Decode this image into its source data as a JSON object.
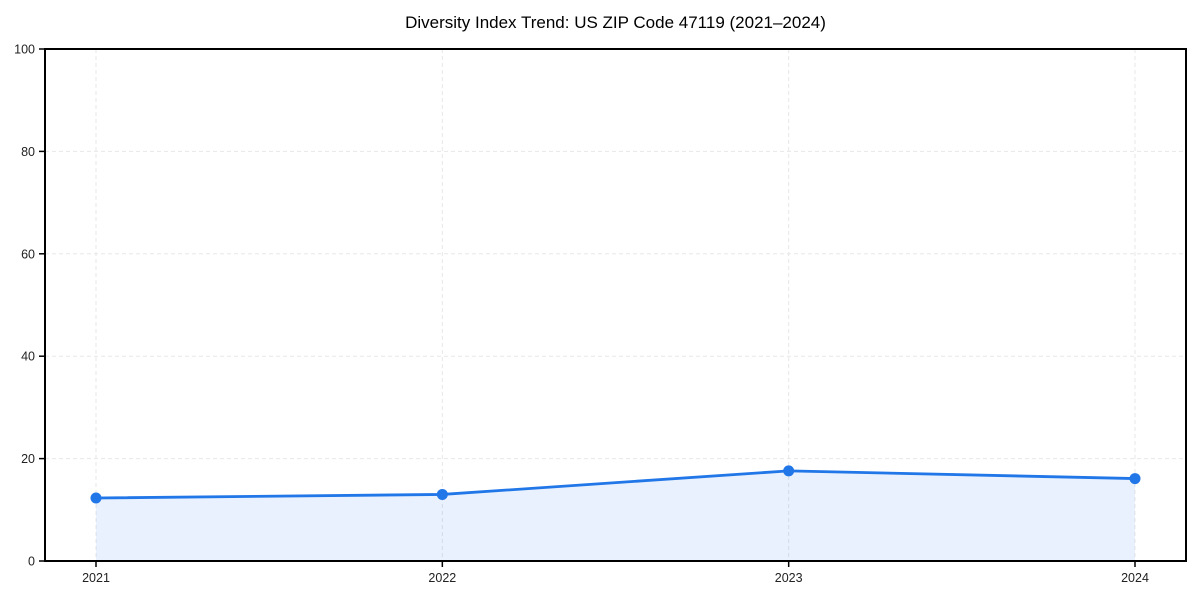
{
  "chart_data": {
    "type": "area",
    "title": "Diversity Index Trend: US ZIP Code 47119 (2021–2024)",
    "categories": [
      "2021",
      "2022",
      "2023",
      "2024"
    ],
    "values": [
      12.3,
      13.0,
      17.6,
      16.1
    ],
    "xlabel": "",
    "ylabel": "",
    "ylim": [
      0,
      100
    ],
    "yticks": [
      0,
      20,
      40,
      60,
      80,
      100
    ],
    "grid": true,
    "grid_style": "dashed",
    "legend_position": "none",
    "colors": {
      "line": "#2176e8",
      "marker": "#2176e8",
      "fill": "#2176e8",
      "fill_opacity": 0.1,
      "grid": "#e7e7e7",
      "axis": "#000000",
      "tick_label": "#222222",
      "title": "#000000",
      "background": "#ffffff"
    }
  }
}
